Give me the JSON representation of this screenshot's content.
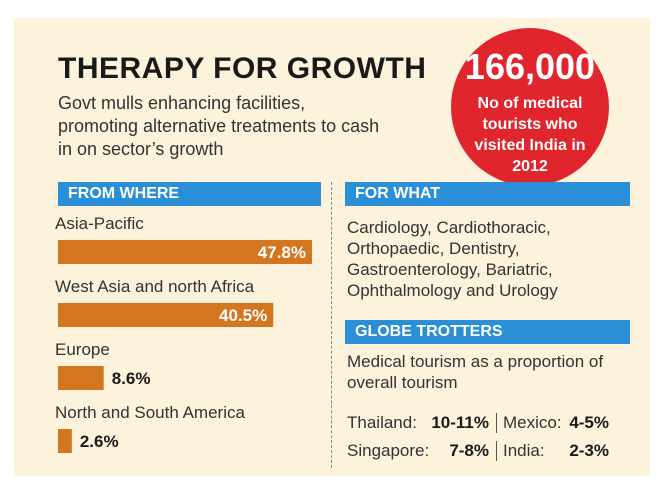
{
  "title": "THERAPY FOR GROWTH",
  "subtitle": "Govt mulls enhancing facilities, promoting alternative treatments to cash in on sector’s growth",
  "badge": {
    "number": "166,000",
    "text": "No of medical tourists who visited India in 2012"
  },
  "sections": {
    "from_where": "FROM WHERE",
    "for_what": "FOR WHAT",
    "globe_trotters": "GLOBE TROTTERS"
  },
  "for_what_text": "Cardiology, Cardiothoracic, Orthopaedic, Dentistry, Gastroenterology, Bariatric, Ophthalmology and Urology",
  "globe_trotters": {
    "description": "Medical tourism as a proportion of overall tourism",
    "stats": [
      {
        "name": "Thailand:",
        "value": "10-11%"
      },
      {
        "name": "Mexico:",
        "value": "4-5%"
      },
      {
        "name": "Singapore:",
        "value": "7-8%"
      },
      {
        "name": "India:",
        "value": "2-3%"
      }
    ]
  },
  "colors": {
    "bar": "#d4761f",
    "header": "#2a8fd6",
    "badge": "#e0262c",
    "panel": "#fdf3dc"
  },
  "chart_data": {
    "type": "bar",
    "orientation": "horizontal",
    "categories": [
      "Asia-Pacific",
      "West Asia and north Africa",
      "Europe",
      "North and South America"
    ],
    "values": [
      47.8,
      40.5,
      8.6,
      2.6
    ],
    "labels": [
      "47.8%",
      "40.5%",
      "8.6%",
      "2.6%"
    ],
    "unit": "%",
    "xlim": [
      0,
      47.8
    ]
  }
}
